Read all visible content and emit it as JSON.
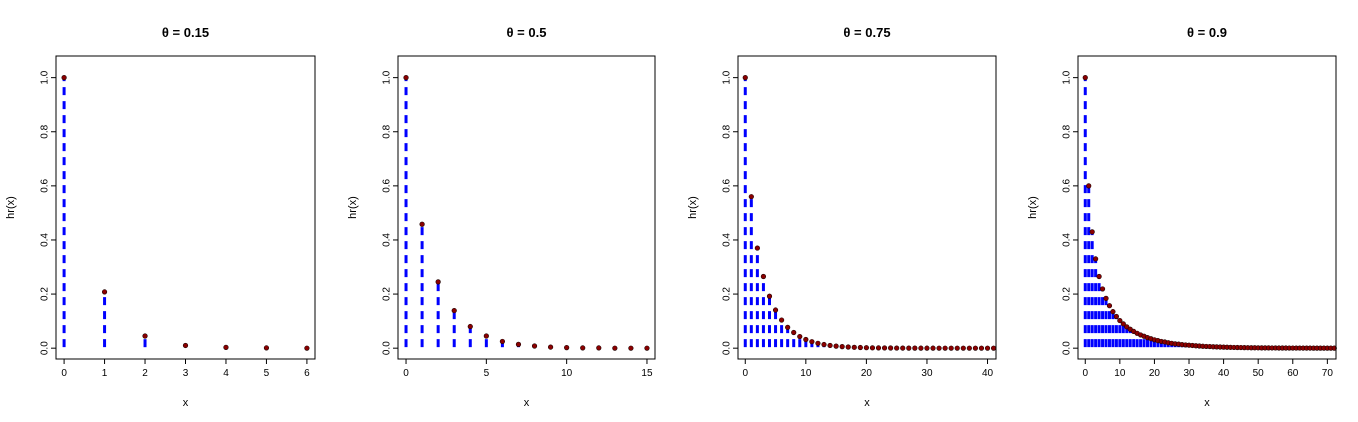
{
  "chart_data": [
    {
      "type": "stem",
      "title": "θ = 0.15",
      "xlabel": "x",
      "ylabel": "hr(x)",
      "theta": 0.15,
      "xlim": [
        -0.2,
        6.2
      ],
      "ylim": [
        -0.04,
        1.08
      ],
      "xticks": [
        0,
        1,
        2,
        3,
        4,
        5,
        6
      ],
      "yticks": [
        0.0,
        0.2,
        0.4,
        0.6,
        0.8,
        1.0
      ],
      "x": [
        0,
        1,
        2,
        3,
        4,
        5,
        6
      ],
      "y": [
        1.0,
        0.208,
        0.045,
        0.01,
        0.003,
        0.001,
        0.0
      ]
    },
    {
      "type": "stem",
      "title": "θ = 0.5",
      "xlabel": "x",
      "ylabel": "hr(x)",
      "theta": 0.5,
      "xlim": [
        -0.5,
        15.5
      ],
      "ylim": [
        -0.04,
        1.08
      ],
      "xticks": [
        0,
        5,
        10,
        15
      ],
      "yticks": [
        0.0,
        0.2,
        0.4,
        0.6,
        0.8,
        1.0
      ],
      "x": [
        0,
        1,
        2,
        3,
        4,
        5,
        6,
        7,
        8,
        9,
        10,
        11,
        12,
        13,
        14,
        15
      ],
      "y": [
        1.0,
        0.458,
        0.245,
        0.139,
        0.08,
        0.045,
        0.025,
        0.014,
        0.008,
        0.004,
        0.002,
        0.001,
        0.001,
        0.0,
        0.0,
        0.0
      ]
    },
    {
      "type": "stem",
      "title": "θ = 0.75",
      "xlabel": "x",
      "ylabel": "hr(x)",
      "theta": 0.75,
      "xlim": [
        -1.2,
        41.4
      ],
      "ylim": [
        -0.04,
        1.08
      ],
      "xticks": [
        0,
        10,
        20,
        30,
        40
      ],
      "yticks": [
        0.0,
        0.2,
        0.4,
        0.6,
        0.8,
        1.0
      ],
      "x": [
        0,
        1,
        2,
        3,
        4,
        5,
        6,
        7,
        8,
        9,
        10,
        11,
        12,
        13,
        14,
        15,
        16,
        17,
        18,
        19,
        20,
        21,
        22,
        23,
        24,
        25,
        26,
        27,
        28,
        29,
        30,
        31,
        32,
        33,
        34,
        35,
        36,
        37,
        38,
        39,
        40,
        41
      ],
      "y": [
        1.0,
        0.56,
        0.37,
        0.265,
        0.192,
        0.141,
        0.104,
        0.077,
        0.058,
        0.043,
        0.032,
        0.024,
        0.018,
        0.0135,
        0.0101,
        0.0076,
        0.0057,
        0.0043,
        0.0032,
        0.0024,
        0.0018,
        0.0013,
        0.001,
        0.0008,
        0.0006,
        0.0004,
        0.0003,
        0.0002,
        0.0002,
        0.0001,
        0.0001,
        0.0001,
        0.0,
        0.0,
        0.0,
        0.0,
        0.0,
        0.0,
        0.0,
        0.0,
        0.0,
        0.0
      ]
    },
    {
      "type": "stem",
      "title": "θ = 0.9",
      "xlabel": "x",
      "ylabel": "hr(x)",
      "theta": 0.9,
      "xlim": [
        -2.1,
        72.5
      ],
      "ylim": [
        -0.04,
        1.08
      ],
      "xticks": [
        0,
        10,
        20,
        30,
        40,
        50,
        60,
        70
      ],
      "yticks": [
        0.0,
        0.2,
        0.4,
        0.6,
        0.8,
        1.0
      ],
      "x": [
        0,
        1,
        2,
        3,
        4,
        5,
        6,
        7,
        8,
        9,
        10,
        11,
        12,
        13,
        14,
        15,
        16,
        17,
        18,
        19,
        20,
        21,
        22,
        23,
        24,
        25,
        26,
        27,
        28,
        29,
        30,
        31,
        32,
        33,
        34,
        35,
        36,
        37,
        38,
        39,
        40,
        41,
        42,
        43,
        44,
        45,
        46,
        47,
        48,
        49,
        50,
        51,
        52,
        53,
        54,
        55,
        56,
        57,
        58,
        59,
        60,
        61,
        62,
        63,
        64,
        65,
        66,
        67,
        68,
        69,
        70,
        71,
        72
      ],
      "y": [
        1.0,
        0.6,
        0.43,
        0.33,
        0.265,
        0.219,
        0.184,
        0.157,
        0.135,
        0.117,
        0.102,
        0.09,
        0.079,
        0.07,
        0.062,
        0.055,
        0.049,
        0.044,
        0.039,
        0.035,
        0.031,
        0.028,
        0.025,
        0.023,
        0.02,
        0.018,
        0.016,
        0.015,
        0.013,
        0.012,
        0.011,
        0.01,
        0.009,
        0.008,
        0.007,
        0.0065,
        0.006,
        0.0053,
        0.0048,
        0.0043,
        0.0039,
        0.0035,
        0.0031,
        0.0028,
        0.0025,
        0.0023,
        0.002,
        0.0018,
        0.0016,
        0.0015,
        0.0013,
        0.0012,
        0.0011,
        0.001,
        0.0009,
        0.0008,
        0.0007,
        0.0006,
        0.0006,
        0.0005,
        0.0005,
        0.0004,
        0.0004,
        0.0003,
        0.0003,
        0.0003,
        0.0002,
        0.0002,
        0.0002,
        0.0002,
        0.0001,
        0.0001,
        0.0001
      ]
    }
  ],
  "colors": {
    "stem": "#0000ff",
    "point": "#8b0000",
    "axis": "#000000"
  }
}
